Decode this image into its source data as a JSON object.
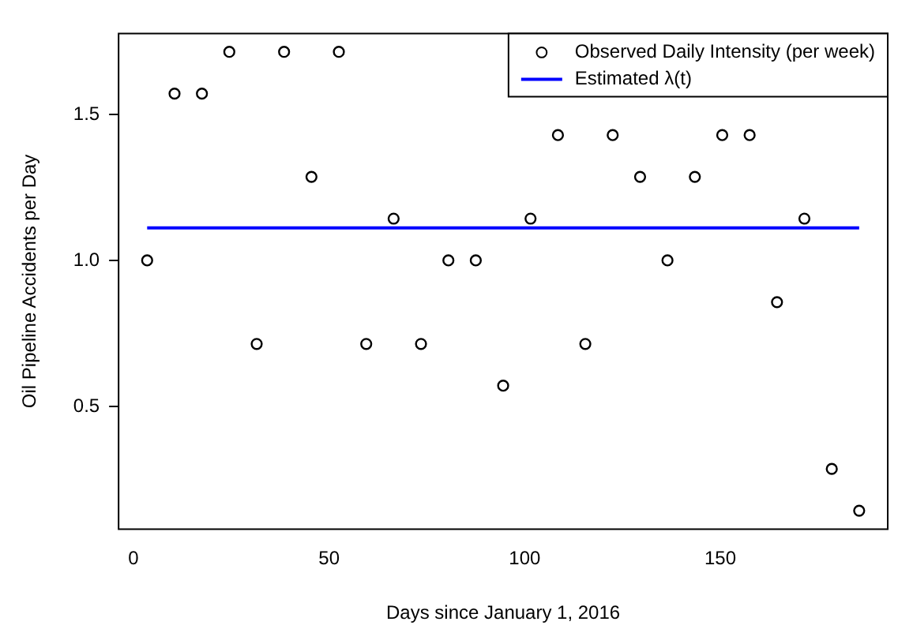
{
  "chart_data": {
    "type": "scatter",
    "xlabel": "Days since January 1, 2016",
    "ylabel": "Oil Pipeline Accidents per Day",
    "xlim": [
      -3.8,
      192.8
    ],
    "xticks": [
      0,
      50,
      100,
      150
    ],
    "ylim": [
      0.08,
      1.777
    ],
    "yticks": [
      {
        "value": 0.5,
        "label": "0.5"
      },
      {
        "value": 1.0,
        "label": "1.0"
      },
      {
        "value": 1.5,
        "label": "1.5"
      }
    ],
    "legend": "top right",
    "series": [
      {
        "name": "Observed Daily Intensity (per week)",
        "marker": "circle",
        "color": "#000000",
        "x": [
          3.5,
          10.5,
          17.5,
          24.5,
          31.5,
          38.5,
          45.5,
          52.5,
          59.5,
          66.5,
          73.5,
          80.5,
          87.5,
          94.5,
          101.5,
          108.5,
          115.5,
          122.5,
          129.5,
          136.5,
          143.5,
          150.5,
          157.5,
          164.5,
          171.5,
          178.5,
          185.5
        ],
        "values": [
          1.0,
          1.571,
          1.571,
          1.714,
          0.714,
          1.714,
          1.286,
          1.714,
          0.714,
          1.143,
          0.714,
          1.0,
          1.0,
          0.571,
          1.143,
          1.429,
          0.714,
          1.429,
          1.286,
          1.0,
          1.286,
          1.429,
          1.429,
          0.857,
          1.143,
          0.286,
          0.143
        ]
      },
      {
        "name": "Estimated λ(t)",
        "type": "line",
        "marker": "none",
        "line_style": "solid",
        "color": "#0000ff",
        "x": [
          3.5,
          185.5
        ],
        "values": [
          1.111,
          1.111
        ]
      }
    ]
  }
}
